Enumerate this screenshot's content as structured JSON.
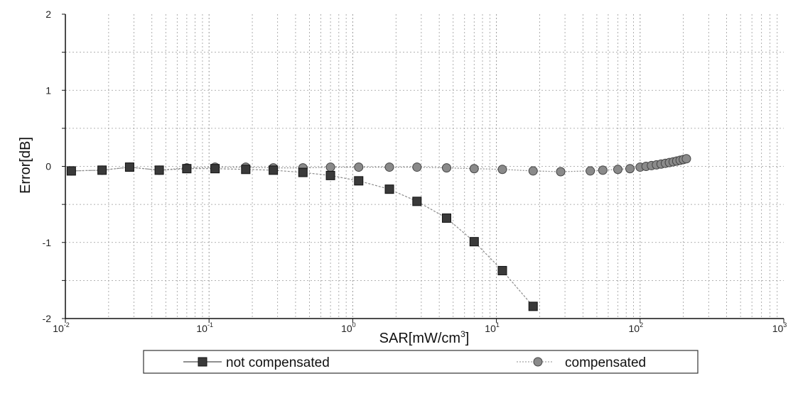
{
  "chart_data": {
    "type": "line",
    "xscale": "log",
    "xlim": [
      0.01,
      1000
    ],
    "ylim": [
      -2,
      2
    ],
    "x_ticks": [
      {
        "base": "10",
        "exp": "-2"
      },
      {
        "base": "10",
        "exp": "-1"
      },
      {
        "base": "10",
        "exp": "0"
      },
      {
        "base": "10",
        "exp": "1"
      },
      {
        "base": "10",
        "exp": "2"
      },
      {
        "base": "10",
        "exp": "3"
      }
    ],
    "y_ticks": [
      "2",
      "1",
      "0",
      "-1",
      "-2"
    ],
    "xlabel": "SAR[mW/cm³]",
    "xlabel_parts": {
      "main": "SAR[mW/cm",
      "sup": "3",
      "end": "]"
    },
    "ylabel": "Error[dB]",
    "grid": true,
    "legend_position": "bottom",
    "series": [
      {
        "name": "not compensated",
        "marker": "square",
        "color": "#3a3a3a",
        "x": [
          0.011,
          0.018,
          0.028,
          0.045,
          0.07,
          0.11,
          0.18,
          0.28,
          0.45,
          0.7,
          1.1,
          1.8,
          2.8,
          4.5,
          7.0,
          11.0,
          18.0
        ],
        "y": [
          -0.06,
          -0.05,
          -0.01,
          -0.05,
          -0.03,
          -0.03,
          -0.04,
          -0.05,
          -0.08,
          -0.12,
          -0.19,
          -0.3,
          -0.46,
          -0.68,
          -0.99,
          -1.37,
          -1.84
        ]
      },
      {
        "name": "compensated",
        "marker": "circle",
        "color": "#8a8a8a",
        "x": [
          0.011,
          0.018,
          0.028,
          0.045,
          0.07,
          0.11,
          0.18,
          0.28,
          0.45,
          0.7,
          1.1,
          1.8,
          2.8,
          4.5,
          7.0,
          11.0,
          18.0,
          28.0,
          45.0,
          55.0,
          70.0,
          85.0,
          100.0,
          110.0,
          120.0,
          130.0,
          140.0,
          150.0,
          160.0,
          170.0,
          180.0,
          190.0,
          200.0,
          210.0
        ],
        "y": [
          -0.06,
          -0.05,
          -0.01,
          -0.05,
          -0.02,
          -0.01,
          -0.01,
          -0.02,
          -0.02,
          -0.01,
          -0.01,
          -0.01,
          -0.01,
          -0.02,
          -0.03,
          -0.04,
          -0.06,
          -0.07,
          -0.06,
          -0.05,
          -0.04,
          -0.03,
          -0.01,
          0.0,
          0.01,
          0.02,
          0.03,
          0.04,
          0.05,
          0.06,
          0.07,
          0.08,
          0.09,
          0.1
        ]
      }
    ]
  },
  "colors": {
    "background": "#ffffff",
    "axis": "#111111",
    "grid": "#9a9a9a",
    "line": "#8c8c8c"
  }
}
